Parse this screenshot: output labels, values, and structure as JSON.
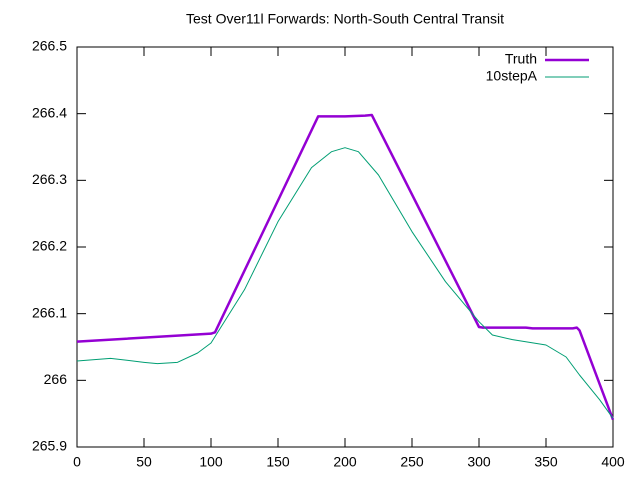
{
  "chart_data": {
    "type": "line",
    "title": "Test Over11l Forwards: North-South Central Transit",
    "xlim": [
      0,
      400
    ],
    "xticks": [
      0,
      50,
      100,
      150,
      200,
      250,
      300,
      350,
      400
    ],
    "ylim": [
      265.9,
      266.5
    ],
    "yticks": [
      265.9,
      266,
      266.1,
      266.2,
      266.3,
      266.4,
      266.5
    ],
    "legend": "top-right",
    "series": [
      {
        "name": "Truth",
        "color": "#9400d3",
        "width": 2.5,
        "x": [
          0,
          100,
          103,
          180,
          200,
          215,
          220,
          300,
          303,
          335,
          340,
          370,
          373,
          375,
          400
        ],
        "values": [
          266.058,
          266.07,
          266.072,
          266.396,
          266.396,
          266.397,
          266.398,
          266.08,
          266.079,
          266.079,
          266.078,
          266.078,
          266.079,
          266.075,
          265.941
        ]
      },
      {
        "name": "10stepA",
        "color": "#009e73",
        "width": 1,
        "x": [
          0,
          25,
          50,
          60,
          75,
          90,
          100,
          125,
          150,
          175,
          190,
          200,
          210,
          225,
          250,
          275,
          290,
          300,
          310,
          325,
          350,
          365,
          375,
          390,
          400
        ],
        "values": [
          266.029,
          266.033,
          266.027,
          266.025,
          266.027,
          266.041,
          266.056,
          266.136,
          266.238,
          266.319,
          266.343,
          266.349,
          266.343,
          266.308,
          266.223,
          266.148,
          266.112,
          266.088,
          266.068,
          266.061,
          266.053,
          266.035,
          266.008,
          265.971,
          265.943
        ]
      }
    ]
  }
}
